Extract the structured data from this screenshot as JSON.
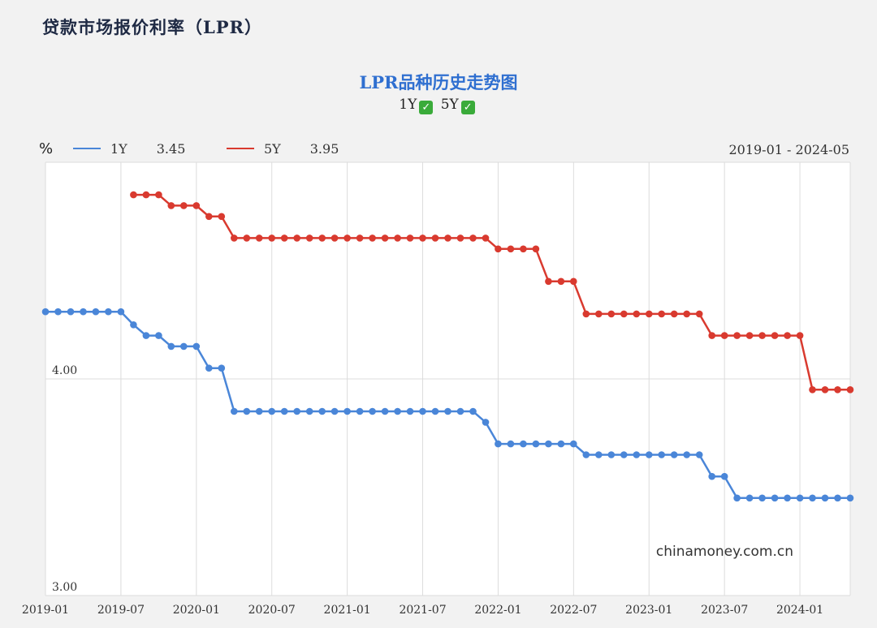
{
  "header": {
    "title": "贷款市场报价利率（LPR）"
  },
  "chart_controls": {
    "y1_label": "1Y",
    "y5_label": "5Y",
    "y1_check": "✓",
    "y5_check": "✓"
  },
  "legend": {
    "unit": "%",
    "items": [
      {
        "name": "1Y",
        "value": "3.45",
        "color": "#4a86d8"
      },
      {
        "name": "5Y",
        "value": "3.95",
        "color": "#d93a2f"
      }
    ],
    "date_range": "2019-01 - 2024-05"
  },
  "watermark": "chinamoney.com.cn",
  "chart_data": {
    "type": "line",
    "title": "LPR品种历史走势图",
    "xlabel": "",
    "ylabel": "%",
    "ylim": [
      3.0,
      5.0
    ],
    "grid": true,
    "x_ticks": [
      "2019-01",
      "2019-07",
      "2020-01",
      "2020-07",
      "2021-01",
      "2021-07",
      "2022-01",
      "2022-07",
      "2023-01",
      "2023-07",
      "2024-01"
    ],
    "y_ticks": [
      "4.00",
      "3.00"
    ],
    "x": [
      "2019-01",
      "2019-02",
      "2019-03",
      "2019-04",
      "2019-05",
      "2019-06",
      "2019-07",
      "2019-08",
      "2019-09",
      "2019-10",
      "2019-11",
      "2019-12",
      "2020-01",
      "2020-02",
      "2020-03",
      "2020-04",
      "2020-05",
      "2020-06",
      "2020-07",
      "2020-08",
      "2020-09",
      "2020-10",
      "2020-11",
      "2020-12",
      "2021-01",
      "2021-02",
      "2021-03",
      "2021-04",
      "2021-05",
      "2021-06",
      "2021-07",
      "2021-08",
      "2021-09",
      "2021-10",
      "2021-11",
      "2021-12",
      "2022-01",
      "2022-02",
      "2022-03",
      "2022-04",
      "2022-05",
      "2022-06",
      "2022-07",
      "2022-08",
      "2022-09",
      "2022-10",
      "2022-11",
      "2022-12",
      "2023-01",
      "2023-02",
      "2023-03",
      "2023-04",
      "2023-05",
      "2023-06",
      "2023-07",
      "2023-08",
      "2023-09",
      "2023-10",
      "2023-11",
      "2023-12",
      "2024-01",
      "2024-02",
      "2024-03",
      "2024-04",
      "2024-05"
    ],
    "series": [
      {
        "name": "1Y",
        "color": "#4a86d8",
        "values": [
          4.31,
          4.31,
          4.31,
          4.31,
          4.31,
          4.31,
          4.31,
          4.25,
          4.2,
          4.2,
          4.15,
          4.15,
          4.15,
          4.05,
          4.05,
          3.85,
          3.85,
          3.85,
          3.85,
          3.85,
          3.85,
          3.85,
          3.85,
          3.85,
          3.85,
          3.85,
          3.85,
          3.85,
          3.85,
          3.85,
          3.85,
          3.85,
          3.85,
          3.85,
          3.85,
          3.8,
          3.7,
          3.7,
          3.7,
          3.7,
          3.7,
          3.7,
          3.7,
          3.65,
          3.65,
          3.65,
          3.65,
          3.65,
          3.65,
          3.65,
          3.65,
          3.65,
          3.65,
          3.55,
          3.55,
          3.45,
          3.45,
          3.45,
          3.45,
          3.45,
          3.45,
          3.45,
          3.45,
          3.45,
          3.45
        ]
      },
      {
        "name": "5Y",
        "color": "#d93a2f",
        "values": [
          null,
          null,
          null,
          null,
          null,
          null,
          null,
          4.85,
          4.85,
          4.85,
          4.8,
          4.8,
          4.8,
          4.75,
          4.75,
          4.65,
          4.65,
          4.65,
          4.65,
          4.65,
          4.65,
          4.65,
          4.65,
          4.65,
          4.65,
          4.65,
          4.65,
          4.65,
          4.65,
          4.65,
          4.65,
          4.65,
          4.65,
          4.65,
          4.65,
          4.65,
          4.6,
          4.6,
          4.6,
          4.6,
          4.45,
          4.45,
          4.45,
          4.3,
          4.3,
          4.3,
          4.3,
          4.3,
          4.3,
          4.3,
          4.3,
          4.3,
          4.3,
          4.2,
          4.2,
          4.2,
          4.2,
          4.2,
          4.2,
          4.2,
          4.2,
          3.95,
          3.95,
          3.95,
          3.95
        ]
      }
    ]
  }
}
